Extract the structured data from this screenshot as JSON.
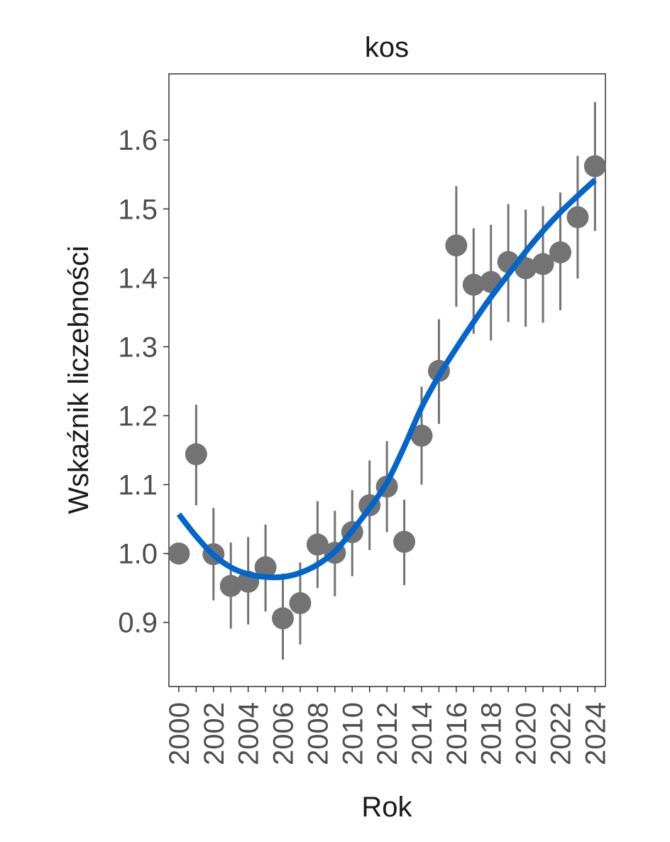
{
  "chart_data": {
    "type": "scatter",
    "title": "kos",
    "xlabel": "Rok",
    "ylabel": "Wskaźnik liczebności",
    "xlim": [
      1999.43,
      2024.6
    ],
    "ylim": [
      0.807,
      1.696
    ],
    "grid": false,
    "x_ticks": [
      2000,
      2001,
      2002,
      2003,
      2004,
      2005,
      2006,
      2007,
      2008,
      2009,
      2010,
      2011,
      2012,
      2013,
      2014,
      2015,
      2016,
      2017,
      2018,
      2019,
      2020,
      2021,
      2022,
      2023,
      2024
    ],
    "x_tick_labels": [
      "2000",
      "2002",
      "2004",
      "2006",
      "2008",
      "2010",
      "2012",
      "2014",
      "2016",
      "2018",
      "2020",
      "2022",
      "2024"
    ],
    "y_tick_labels": [
      "0.9",
      "1.0",
      "1.1",
      "1.2",
      "1.3",
      "1.4",
      "1.5",
      "1.6"
    ],
    "points": {
      "x": [
        2000,
        2001,
        2002,
        2003,
        2004,
        2005,
        2006,
        2007,
        2008,
        2009,
        2010,
        2011,
        2012,
        2013,
        2014,
        2015,
        2016,
        2017,
        2018,
        2019,
        2020,
        2021,
        2022,
        2023,
        2024
      ],
      "y": [
        1.0,
        1.144,
        0.999,
        0.953,
        0.959,
        0.98,
        0.906,
        0.928,
        1.013,
        1.001,
        1.031,
        1.07,
        1.097,
        1.017,
        1.171,
        1.265,
        1.447,
        1.39,
        1.394,
        1.423,
        1.414,
        1.42,
        1.437,
        1.488,
        1.562
      ],
      "upper": [
        null,
        1.216,
        1.066,
        1.016,
        1.024,
        1.042,
        0.971,
        0.987,
        1.076,
        1.062,
        1.092,
        1.135,
        1.163,
        1.078,
        1.242,
        1.34,
        1.533,
        1.472,
        1.477,
        1.507,
        1.499,
        1.504,
        1.524,
        1.577,
        1.655
      ],
      "lower": [
        null,
        1.07,
        0.932,
        0.891,
        0.897,
        0.916,
        0.846,
        0.868,
        0.95,
        0.938,
        0.967,
        1.005,
        1.031,
        0.954,
        1.1,
        1.188,
        1.358,
        1.319,
        1.309,
        1.336,
        1.329,
        1.335,
        1.353,
        1.399,
        1.468
      ]
    },
    "smooth": {
      "x": [
        2000,
        2001,
        2002,
        2003,
        2004,
        2005,
        2006,
        2007,
        2008,
        2009,
        2010,
        2011,
        2012,
        2013,
        2014,
        2015,
        2016,
        2017,
        2018,
        2019,
        2020,
        2021,
        2022,
        2023,
        2024
      ],
      "y": [
        1.057,
        1.025,
        0.998,
        0.98,
        0.97,
        0.966,
        0.966,
        0.972,
        0.984,
        1.003,
        1.033,
        1.066,
        1.103,
        1.155,
        1.212,
        1.258,
        1.298,
        1.336,
        1.372,
        1.405,
        1.438,
        1.468,
        1.495,
        1.519,
        1.542
      ]
    },
    "colors": {
      "points": "#737373",
      "smooth": "#0066CC",
      "axis": "#333333",
      "tick_text": "#4D4D4D"
    }
  }
}
